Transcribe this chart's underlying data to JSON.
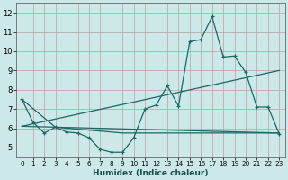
{
  "xlabel": "Humidex (Indice chaleur)",
  "bg_color": "#cce8e8",
  "grid_color": "#b8a0a0",
  "line_color": "#1a6868",
  "xlim": [
    -0.5,
    23.5
  ],
  "ylim": [
    4.5,
    12.5
  ],
  "xticks": [
    0,
    1,
    2,
    3,
    4,
    5,
    6,
    7,
    8,
    9,
    10,
    11,
    12,
    13,
    14,
    15,
    16,
    17,
    18,
    19,
    20,
    21,
    22,
    23
  ],
  "yticks": [
    5,
    6,
    7,
    8,
    9,
    10,
    11,
    12
  ],
  "main_x": [
    0,
    1,
    2,
    3,
    4,
    5,
    6,
    7,
    8,
    9,
    10,
    11,
    12,
    13,
    14,
    15,
    16,
    17,
    18,
    19,
    20,
    21,
    22,
    23
  ],
  "main_y": [
    7.5,
    6.3,
    5.75,
    6.05,
    5.8,
    5.75,
    5.5,
    4.9,
    4.75,
    4.75,
    5.5,
    7.0,
    7.2,
    8.2,
    7.15,
    10.5,
    10.6,
    11.8,
    9.7,
    9.75,
    8.9,
    7.1,
    7.1,
    5.7
  ],
  "trend1_x": [
    0,
    23
  ],
  "trend1_y": [
    6.1,
    5.75
  ],
  "trend2_x": [
    0,
    23
  ],
  "trend2_y": [
    6.1,
    9.0
  ],
  "trend3_x": [
    0,
    3,
    9,
    23
  ],
  "trend3_y": [
    7.5,
    6.05,
    5.75,
    5.75
  ]
}
